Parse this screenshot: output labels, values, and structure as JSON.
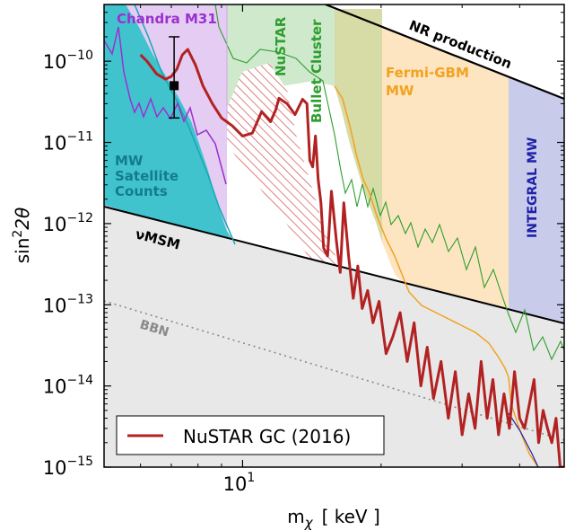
{
  "chart_data": {
    "type": "line",
    "xlabel": "m",
    "xlabel_sub": "χ",
    "xlabel_unit": "[ keV ]",
    "ylabel_main": "sin",
    "ylabel_sup": "2",
    "ylabel_tail": "2θ",
    "x_scale": "log",
    "y_scale": "log",
    "xlim": [
      5,
      50
    ],
    "ylim": [
      1e-15,
      5e-10
    ],
    "x_ticks": [
      {
        "value": 10,
        "base": "10",
        "exp": "1"
      }
    ],
    "y_ticks": [
      {
        "value": 1e-10,
        "base": "10",
        "exp": "−10"
      },
      {
        "value": 1e-11,
        "base": "10",
        "exp": "−11"
      },
      {
        "value": 1e-12,
        "base": "10",
        "exp": "−12"
      },
      {
        "value": 1e-13,
        "base": "10",
        "exp": "−13"
      },
      {
        "value": 1e-14,
        "base": "10",
        "exp": "−14"
      },
      {
        "value": 1e-15,
        "base": "10",
        "exp": "−15"
      }
    ],
    "legend": {
      "position": "bottom-left",
      "entries": [
        {
          "label": "NuSTAR GC (2016)",
          "color": "#b22222"
        }
      ]
    },
    "regions": [
      {
        "label": "Chandra M31",
        "color": "#9b30d0",
        "fill": "#e4ccf2"
      },
      {
        "label": "NuSTAR",
        "color": "#2e9e2e",
        "fill": "#cfe9cd"
      },
      {
        "label": "Bullet Cluster",
        "color": "#2e9e2e",
        "fill": "#cfe9cd"
      },
      {
        "label": "Fermi-GBM",
        "label2": "MW",
        "color": "#f2a21f",
        "fill": "#fde5c2"
      },
      {
        "label": "INTEGRAL MW",
        "color": "#2020a8",
        "fill": "#c8cbea"
      },
      {
        "label": "NR production",
        "color": "#000000",
        "fill": "#d9d9d9"
      },
      {
        "label": "MW",
        "label2": "Satellite",
        "label3": "Counts",
        "color": "#137c8c",
        "fill": "#41c3ce"
      },
      {
        "label": "νMSM",
        "color": "#000000",
        "fill": "#e8e8e8"
      },
      {
        "label": "BBN",
        "color": "#8a8a8a",
        "fill": "none"
      }
    ],
    "data_point": {
      "x": 7.1,
      "y": 5e-11,
      "y_err": [
        2e-11,
        2e-10
      ]
    },
    "series": [
      {
        "name": "NuSTAR GC (2016)",
        "color": "#b22222",
        "x": [
          6.0,
          6.2,
          6.5,
          6.8,
          7.0,
          7.2,
          7.4,
          7.6,
          7.9,
          8.2,
          8.6,
          9.0,
          9.5,
          10.0,
          10.5,
          11.0,
          11.5,
          11.8,
          12.0,
          12.5,
          13.0,
          13.5,
          13.8,
          14.0,
          14.2,
          14.4,
          14.6,
          14.8,
          15.0,
          15.3,
          15.6,
          16.0,
          16.3,
          16.6,
          17.0,
          17.4,
          17.8,
          18.2,
          18.7,
          19.2,
          19.8,
          20.5,
          21.2,
          22.0,
          22.8,
          23.6,
          24.4,
          25.2,
          26.0,
          27.0,
          28.0,
          29.0,
          30.0,
          31.0,
          32.0,
          33.0,
          34.0,
          35.0,
          36.0,
          37.0,
          38.0,
          39.0,
          40.0,
          41.0,
          42.0,
          43.0,
          44.0,
          45.0,
          46.0,
          47.0,
          48.0,
          49.0,
          50.0
        ],
        "y": [
          1.2e-10,
          1e-10,
          7e-11,
          6e-11,
          6.5e-11,
          8e-11,
          1.2e-10,
          1.4e-10,
          9e-11,
          5e-11,
          3e-11,
          2e-11,
          1.6e-11,
          1.2e-11,
          1.3e-11,
          2.4e-11,
          1.8e-11,
          2.5e-11,
          3.5e-11,
          3e-11,
          2.2e-11,
          3.4e-11,
          3e-11,
          6e-12,
          5e-12,
          1.2e-11,
          3.5e-12,
          1.8e-12,
          5e-13,
          4e-13,
          2.5e-12,
          6e-13,
          2.5e-13,
          1.8e-12,
          4e-13,
          1.2e-13,
          3e-13,
          9e-14,
          1.5e-13,
          6e-14,
          1.1e-13,
          2.5e-14,
          4e-14,
          8e-14,
          2e-14,
          6e-14,
          1e-14,
          3e-14,
          7e-15,
          2e-14,
          4e-15,
          1.5e-14,
          2.5e-15,
          8e-15,
          3e-15,
          2e-14,
          4e-15,
          1.2e-14,
          2.5e-15,
          8e-15,
          3e-15,
          1.5e-14,
          4e-15,
          3e-15,
          6e-15,
          1.2e-14,
          2e-15,
          5e-15,
          3e-15,
          2e-15,
          4e-15,
          1e-15,
          1e-15
        ]
      }
    ]
  }
}
